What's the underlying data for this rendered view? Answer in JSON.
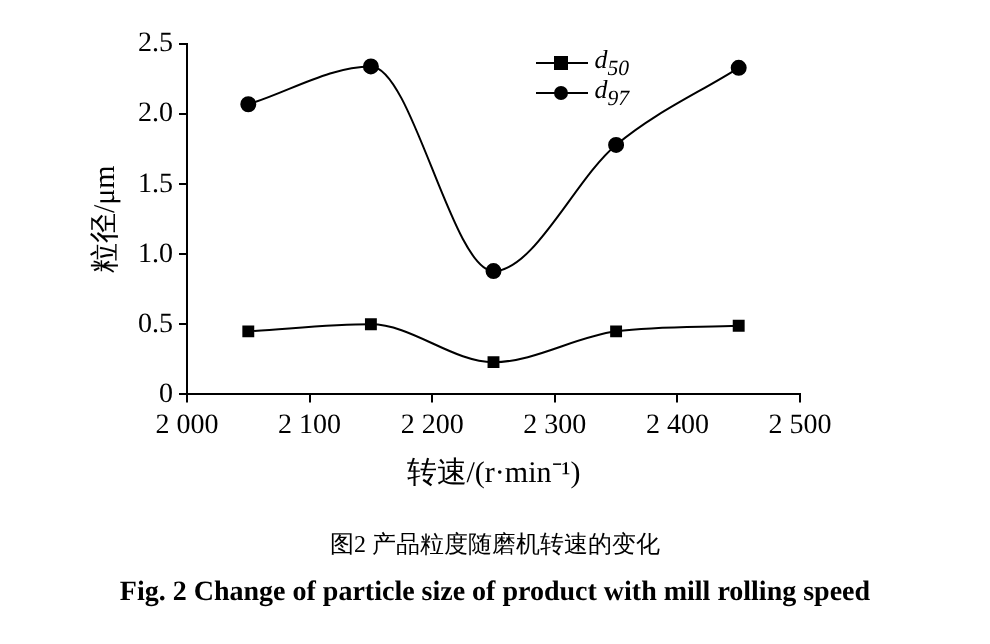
{
  "chart_data": {
    "type": "line",
    "xlabel": "转速/(r·min⁻¹)",
    "ylabel": "粒径/μm",
    "x": [
      2050,
      2150,
      2250,
      2350,
      2450
    ],
    "series": [
      {
        "name": "d$_{50}$",
        "color": "#000000",
        "marker": "square",
        "values": [
          0.45,
          0.5,
          0.23,
          0.45,
          0.49
        ]
      },
      {
        "name": "d$_{97}$",
        "color": "#000000",
        "marker": "circle",
        "values": [
          2.07,
          2.34,
          0.88,
          1.78,
          2.33
        ]
      }
    ],
    "xlim": [
      2000,
      2500
    ],
    "xticks": [
      {
        "value": 2000,
        "label": "2 000"
      },
      {
        "value": 2100,
        "label": "2 100"
      },
      {
        "value": 2200,
        "label": "2 200"
      },
      {
        "value": 2300,
        "label": "2 300"
      },
      {
        "value": 2400,
        "label": "2 400"
      },
      {
        "value": 2500,
        "label": "2 500"
      }
    ],
    "ylim": [
      0,
      2.5
    ],
    "yticks": [
      0,
      0.5,
      {
        "value": 1,
        "label": "1.0"
      },
      1.5,
      {
        "value": 2,
        "label": "2.0"
      },
      2.5
    ],
    "grid": false,
    "legend": "top right",
    "line_style": "solid",
    "annotations": [
      "图2 产品粒度随磨机转速的变化",
      "Fig. 2 Change of particle size of product with mill rolling speed"
    ]
  }
}
